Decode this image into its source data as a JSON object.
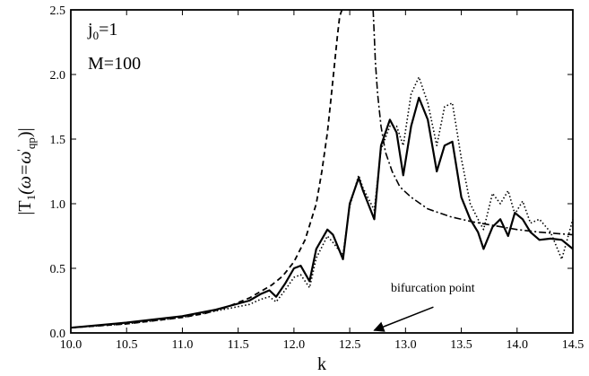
{
  "chart_data": {
    "type": "line",
    "title": "",
    "xlabel": "k",
    "ylabel": "|T₁(ω=ω'₀ₚ)|",
    "ylabel_parts": {
      "main": "|T",
      "sub1": "1",
      "mid": "(ω=ω",
      "sup": "'",
      "sub2": "qp",
      "end": ")|"
    },
    "xlim": [
      10.0,
      14.5
    ],
    "ylim": [
      0.0,
      2.5
    ],
    "grid": false,
    "legend": "none",
    "xticks": [
      "10.0",
      "10.5",
      "11.0",
      "11.5",
      "12.0",
      "12.5",
      "13.0",
      "13.5",
      "14.0",
      "14.5"
    ],
    "yticks": [
      "0.0",
      "0.5",
      "1.0",
      "1.5",
      "2.0",
      "2.5"
    ],
    "annotations": {
      "params": [
        "j0=1",
        "M=100"
      ],
      "param_j0_main": "j",
      "param_j0_sub": "0",
      "param_j0_value": "=1",
      "param_M": "M=100",
      "arrow_text": "bifurcation point",
      "arrow_target": [
        12.72,
        0.02
      ],
      "arrow_tail": [
        13.25,
        0.2
      ]
    },
    "series": [
      {
        "style": "solid",
        "x": [
          10.0,
          10.5,
          11.0,
          11.3,
          11.6,
          11.7,
          11.78,
          11.84,
          11.92,
          12.0,
          12.06,
          12.14,
          12.2,
          12.3,
          12.35,
          12.44,
          12.5,
          12.58,
          12.62,
          12.72,
          12.78,
          12.86,
          12.92,
          12.98,
          13.05,
          13.12,
          13.2,
          13.28,
          13.35,
          13.42,
          13.5,
          13.58,
          13.65,
          13.7,
          13.78,
          13.85,
          13.92,
          13.98,
          14.05,
          14.12,
          14.2,
          14.3,
          14.4,
          14.5
        ],
        "y": [
          0.04,
          0.08,
          0.13,
          0.18,
          0.25,
          0.3,
          0.33,
          0.28,
          0.38,
          0.5,
          0.52,
          0.4,
          0.65,
          0.8,
          0.76,
          0.57,
          1.0,
          1.2,
          1.1,
          0.88,
          1.45,
          1.65,
          1.55,
          1.22,
          1.6,
          1.82,
          1.65,
          1.25,
          1.45,
          1.48,
          1.05,
          0.88,
          0.78,
          0.65,
          0.82,
          0.88,
          0.75,
          0.93,
          0.88,
          0.78,
          0.72,
          0.73,
          0.72,
          0.65
        ]
      },
      {
        "style": "dotted",
        "x": [
          10.0,
          10.5,
          11.0,
          11.3,
          11.6,
          11.7,
          11.78,
          11.84,
          11.92,
          12.0,
          12.06,
          12.14,
          12.2,
          12.3,
          12.35,
          12.44,
          12.5,
          12.58,
          12.62,
          12.72,
          12.78,
          12.86,
          12.92,
          12.98,
          13.05,
          13.12,
          13.2,
          13.28,
          13.35,
          13.42,
          13.5,
          13.58,
          13.65,
          13.7,
          13.78,
          13.85,
          13.92,
          13.98,
          14.05,
          14.12,
          14.2,
          14.3,
          14.4,
          14.5
        ],
        "y": [
          0.04,
          0.07,
          0.12,
          0.17,
          0.22,
          0.26,
          0.28,
          0.24,
          0.33,
          0.43,
          0.45,
          0.35,
          0.58,
          0.75,
          0.7,
          0.6,
          0.98,
          1.22,
          1.12,
          0.95,
          1.42,
          1.6,
          1.6,
          1.45,
          1.85,
          1.98,
          1.78,
          1.45,
          1.75,
          1.78,
          1.35,
          1.0,
          0.88,
          0.8,
          1.08,
          1.0,
          1.1,
          0.92,
          1.02,
          0.85,
          0.88,
          0.78,
          0.57,
          0.88
        ]
      },
      {
        "style": "dashed",
        "x": [
          10.0,
          10.5,
          11.0,
          11.2,
          11.4,
          11.6,
          11.8,
          11.9,
          12.0,
          12.1,
          12.2,
          12.25,
          12.3,
          12.33,
          12.36,
          12.39,
          12.41,
          12.43
        ],
        "y": [
          0.04,
          0.07,
          0.12,
          0.15,
          0.2,
          0.27,
          0.37,
          0.44,
          0.55,
          0.72,
          1.0,
          1.25,
          1.55,
          1.8,
          2.05,
          2.3,
          2.45,
          2.5
        ]
      },
      {
        "style": "dashdot",
        "x": [
          12.71,
          12.72,
          12.73,
          12.75,
          12.78,
          12.82,
          12.88,
          12.95,
          13.05,
          13.2,
          13.4,
          13.6,
          13.8,
          14.0,
          14.2,
          14.5
        ],
        "y": [
          2.5,
          2.3,
          2.1,
          1.85,
          1.6,
          1.4,
          1.25,
          1.13,
          1.05,
          0.96,
          0.9,
          0.86,
          0.83,
          0.8,
          0.78,
          0.76
        ]
      }
    ]
  }
}
